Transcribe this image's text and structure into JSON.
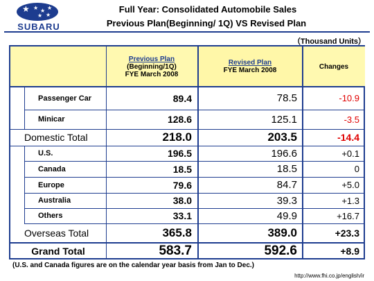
{
  "brand": {
    "name": "SUBARU",
    "color": "#1d3c8f",
    "emblem": "six-star-oval-logo"
  },
  "header": {
    "title_line1": "Full Year: Consolidated Automobile Sales",
    "title_line2": "Previous Plan(Beginning/ 1Q) VS Revised Plan",
    "units": "（Thousand Units）"
  },
  "table": {
    "col_previous": {
      "line1": "Previous Plan",
      "line2": "(Beginning/1Q)",
      "line3": "FYE March 2008"
    },
    "col_revised": {
      "line1": "Revised Plan",
      "line2": "FYE March 2008"
    },
    "col_changes": "Changes",
    "rows": [
      {
        "label": "Passenger Car",
        "previous": "89.4",
        "revised": "78.5",
        "change": "-10.9"
      },
      {
        "label": "Minicar",
        "previous": "128.6",
        "revised": "125.1",
        "change": "-3.5"
      },
      {
        "label": "Domestic Total",
        "previous": "218.0",
        "revised": "203.5",
        "change": "-14.4"
      },
      {
        "label": "U.S.",
        "previous": "196.5",
        "revised": "196.6",
        "change": "+0.1"
      },
      {
        "label": "Canada",
        "previous": "18.5",
        "revised": "18.5",
        "change": "0"
      },
      {
        "label": "Europe",
        "previous": "79.6",
        "revised": "84.7",
        "change": "+5.0"
      },
      {
        "label": "Australia",
        "previous": "38.0",
        "revised": "39.3",
        "change": "+1.3"
      },
      {
        "label": "Others",
        "previous": "33.1",
        "revised": "49.9",
        "change": "+16.7"
      },
      {
        "label": "Overseas Total",
        "previous": "365.8",
        "revised": "389.0",
        "change": "+23.3"
      },
      {
        "label": "Grand Total",
        "previous": "583.7",
        "revised": "592.6",
        "change": "+8.9"
      }
    ]
  },
  "footnote": "(U.S. and Canada figures are on the calendar year basis from Jan to Dec.)",
  "url": "http://www.fhi.co.jp/english/ir",
  "colors": {
    "negative": "#e00000",
    "header_bg": "#fff9b0",
    "border": "#1d3c8f"
  }
}
